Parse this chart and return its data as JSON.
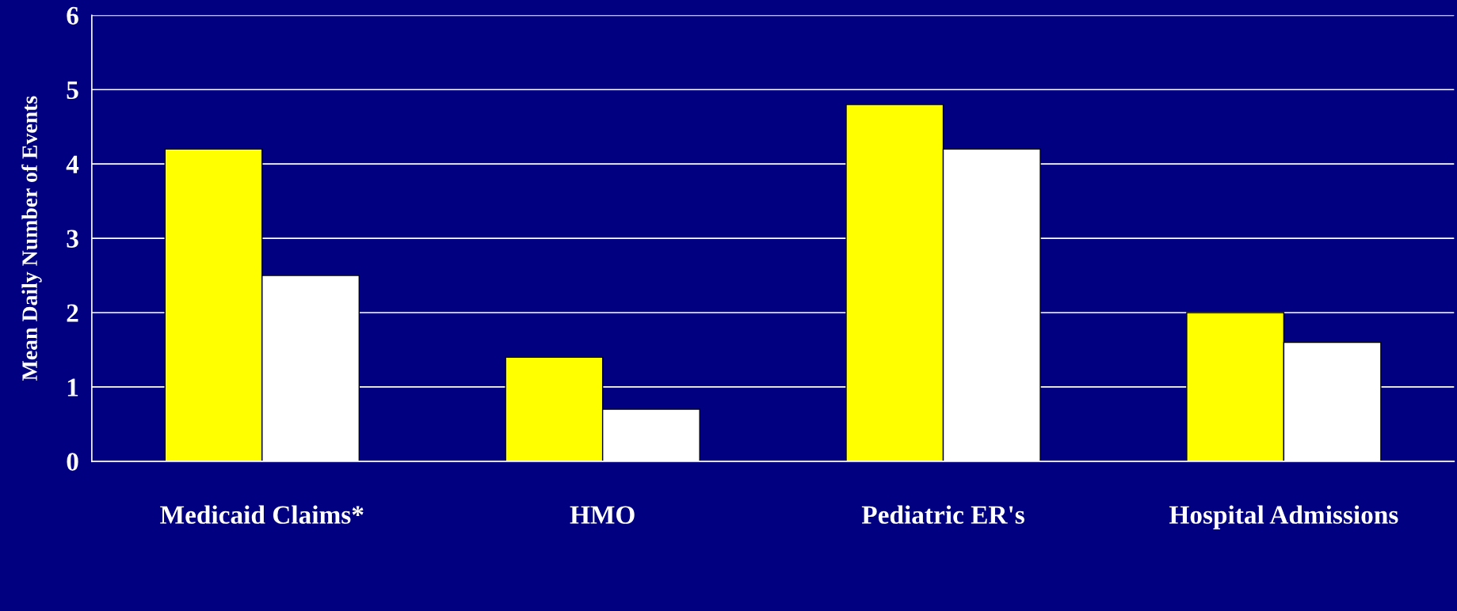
{
  "chart_data": {
    "type": "bar",
    "ylabel": "Mean Daily Number of Events",
    "categories": [
      "Medicaid Claims*",
      "HMO",
      "Pediatric ER's",
      "Hospital Admissions"
    ],
    "series": [
      {
        "color": "#ffff00",
        "values": [
          4.2,
          1.4,
          4.8,
          2.0
        ]
      },
      {
        "color": "#ffffff",
        "values": [
          2.5,
          0.7,
          4.2,
          1.6
        ]
      }
    ],
    "ylim": [
      0,
      6
    ],
    "yticks": [
      0,
      1,
      2,
      3,
      4,
      5,
      6
    ],
    "grid": "y"
  }
}
